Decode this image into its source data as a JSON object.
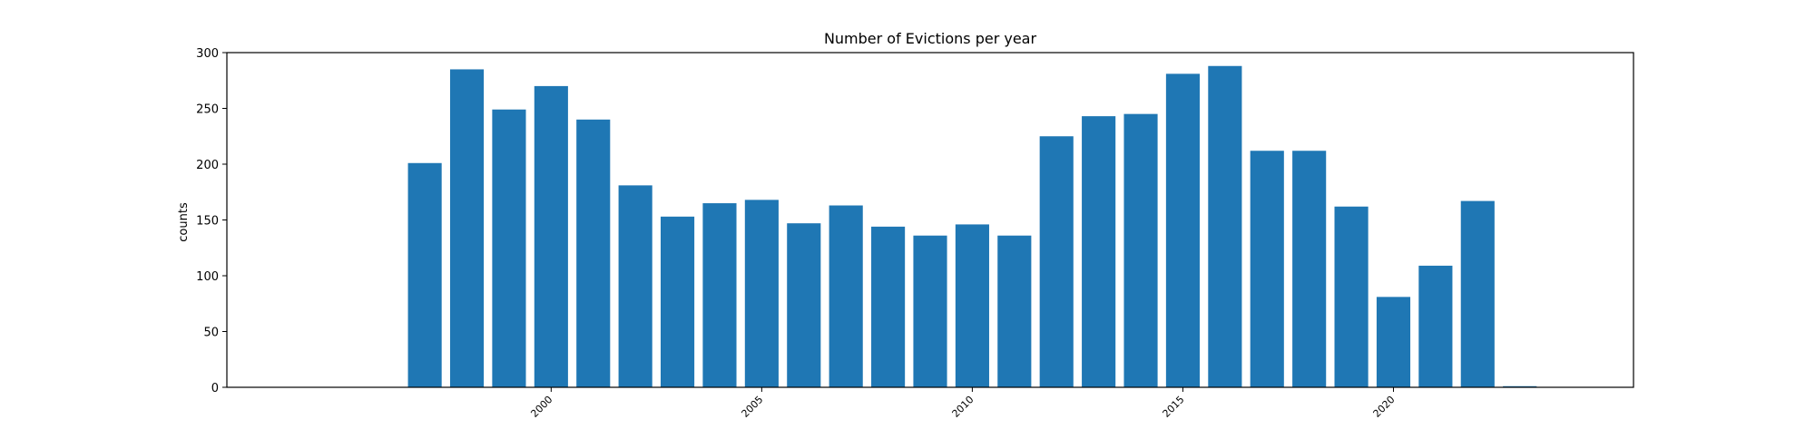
{
  "chart_data": {
    "type": "bar",
    "title": "Number of Evictions per year",
    "xlabel": "",
    "ylabel": "counts",
    "x": [
      1997,
      1998,
      1999,
      2000,
      2001,
      2002,
      2003,
      2004,
      2005,
      2006,
      2007,
      2008,
      2009,
      2010,
      2011,
      2012,
      2013,
      2014,
      2015,
      2016,
      2017,
      2018,
      2019,
      2020,
      2021,
      2022,
      2023
    ],
    "values": [
      201,
      285,
      249,
      270,
      240,
      181,
      153,
      165,
      168,
      147,
      163,
      144,
      136,
      146,
      136,
      225,
      243,
      245,
      281,
      288,
      212,
      212,
      162,
      81,
      109,
      167,
      1
    ],
    "xlim": [
      1992.3,
      2025.7
    ],
    "ylim": [
      0,
      300
    ],
    "xticks": [
      2000,
      2005,
      2010,
      2015,
      2020
    ],
    "xtick_labels": [
      "2000",
      "2005",
      "2010",
      "2015",
      "2020"
    ],
    "yticks": [
      0,
      50,
      100,
      150,
      200,
      250,
      300
    ],
    "ytick_labels": [
      "0",
      "50",
      "100",
      "150",
      "200",
      "250",
      "300"
    ],
    "grid": false,
    "legend": "none",
    "bar_color": "#1f77b4"
  }
}
